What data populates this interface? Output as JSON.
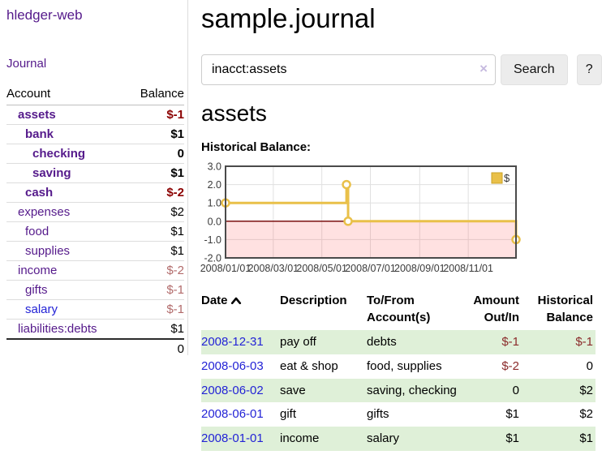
{
  "colors": {
    "purple": "#551a8b",
    "blue": "#2323d6",
    "negative-bold": "#8b0000",
    "negative-muted": "#b26b6b",
    "negative-table": "#8b2b2b",
    "stripe-green": "#dff0d8",
    "clear-x": "#c6badf",
    "chart-gold": "#e9c049",
    "chart-gold-dark": "#c9a227",
    "chart-negative-fill": "rgba(255,90,90,0.18)",
    "chart-zero-line": "#7a1111",
    "chart-border": "#4a4a4a",
    "chart-grid": "#e0e0e0",
    "chart-axis-text": "#3a3a3a"
  },
  "app": {
    "brand": "hledger-web",
    "nav_journal": "Journal"
  },
  "sidebar": {
    "accounts_header": {
      "account": "Account",
      "balance": "Balance"
    },
    "accounts": [
      {
        "name": "assets",
        "balance": "$-1",
        "indent": 1,
        "bold": true
      },
      {
        "name": "bank",
        "balance": "$1",
        "indent": 2,
        "bold": true
      },
      {
        "name": "checking",
        "balance": "0",
        "indent": 3,
        "bold": true
      },
      {
        "name": "saving",
        "balance": "$1",
        "indent": 3,
        "bold": true
      },
      {
        "name": "cash",
        "balance": "$-2",
        "indent": 2,
        "bold": true
      },
      {
        "name": "expenses",
        "balance": "$2",
        "indent": 1,
        "bold": false
      },
      {
        "name": "food",
        "balance": "$1",
        "indent": 2,
        "bold": false
      },
      {
        "name": "supplies",
        "balance": "$1",
        "indent": 2,
        "bold": false
      },
      {
        "name": "income",
        "balance": "$-2",
        "indent": 1,
        "bold": false
      },
      {
        "name": "gifts",
        "balance": "$-1",
        "indent": 2,
        "bold": false
      },
      {
        "name": "salary",
        "balance": "$-1",
        "indent": 2,
        "bold": false,
        "unvisited": true
      },
      {
        "name": "liabilities:debts",
        "balance": "$1",
        "indent": 1,
        "bold": false
      }
    ],
    "total": "0"
  },
  "header": {
    "title": "sample.journal"
  },
  "search": {
    "query": "inacct:assets",
    "clear_icon": "×",
    "button": "Search",
    "help_button": "?"
  },
  "account_page": {
    "heading": "assets",
    "chart_label": "Historical Balance:"
  },
  "chart_data": {
    "type": "line",
    "step": true,
    "title": "Historical Balance",
    "series": [
      {
        "name": "$",
        "points": [
          [
            "2008-01-01",
            1
          ],
          [
            "2008-06-01",
            2
          ],
          [
            "2008-06-03",
            0
          ],
          [
            "2008-12-31",
            -1
          ]
        ]
      }
    ],
    "xlim": [
      "2008-01-01",
      "2008-12-31"
    ],
    "ylim": [
      -2,
      3
    ],
    "y_ticks": [
      3,
      2,
      1,
      0,
      -1,
      -2
    ],
    "x_ticks": [
      {
        "label": "2008/01/01",
        "date": "2008-01-01"
      },
      {
        "label": "2008/03/01",
        "date": "2008-03-01"
      },
      {
        "label": "2008/05/01",
        "date": "2008-05-01"
      },
      {
        "label": "2008/07/01",
        "date": "2008-07-01"
      },
      {
        "label": "2008/09/01",
        "date": "2008-09-01"
      },
      {
        "label": "2008/11/01",
        "date": "2008-11-01"
      }
    ],
    "legend": {
      "label": "$",
      "position": "top-right"
    },
    "grid": true
  },
  "register": {
    "columns": {
      "date": "Date",
      "description": "Description",
      "accounts": "To/From Account(s)",
      "amount": "Amount Out/In",
      "balance": "Historical Balance"
    },
    "rows": [
      {
        "date": "2008-12-31",
        "description": "pay off",
        "accounts": "debts",
        "amount": "$-1",
        "balance": "$-1"
      },
      {
        "date": "2008-06-03",
        "description": "eat & shop",
        "accounts": "food, supplies",
        "amount": "$-2",
        "balance": "0"
      },
      {
        "date": "2008-06-02",
        "description": "save",
        "accounts": "saving, checking",
        "amount": "0",
        "balance": "$2"
      },
      {
        "date": "2008-06-01",
        "description": "gift",
        "accounts": "gifts",
        "amount": "$1",
        "balance": "$2"
      },
      {
        "date": "2008-01-01",
        "description": "income",
        "accounts": "salary",
        "amount": "$1",
        "balance": "$1"
      }
    ]
  }
}
